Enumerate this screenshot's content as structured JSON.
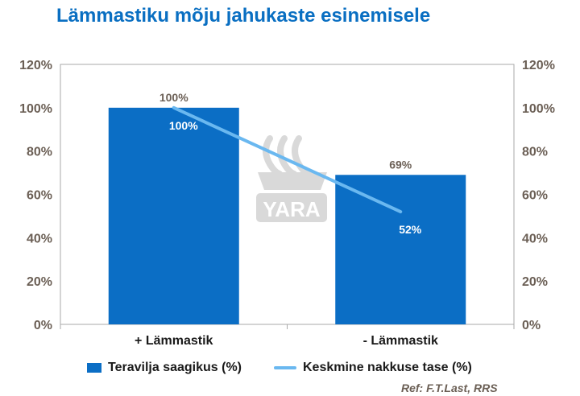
{
  "title": "Lämmastiku mõju jahukaste esinemisele",
  "reference": "Ref: F.T.Last,  RRS",
  "watermark": "YARA",
  "colors": {
    "bar": "#0b6ec5",
    "line": "#6ab8f0",
    "title": "#0a6fc2",
    "axis_text": "#6b5f55",
    "frame": "#aaaaaa"
  },
  "chart_data": {
    "type": "bar",
    "categories": [
      "+  Lämmastik",
      "- Lämmastik"
    ],
    "series": [
      {
        "name": "Teravilja saagikus (%)",
        "type": "bar",
        "values": [
          100,
          69
        ],
        "labels": [
          "100%",
          "69%"
        ]
      },
      {
        "name": "Keskmine nakkuse tase (%)",
        "type": "line",
        "values": [
          100,
          52
        ],
        "labels": [
          "100%",
          "52%"
        ]
      }
    ],
    "ylim": [
      0,
      120
    ],
    "y_ticks": [
      "0%",
      "20%",
      "40%",
      "60%",
      "80%",
      "100%",
      "120%"
    ],
    "y2_ticks": [
      "0%",
      "20%",
      "40%",
      "60%",
      "80%",
      "100%",
      "120%"
    ],
    "legend": "bottom"
  }
}
